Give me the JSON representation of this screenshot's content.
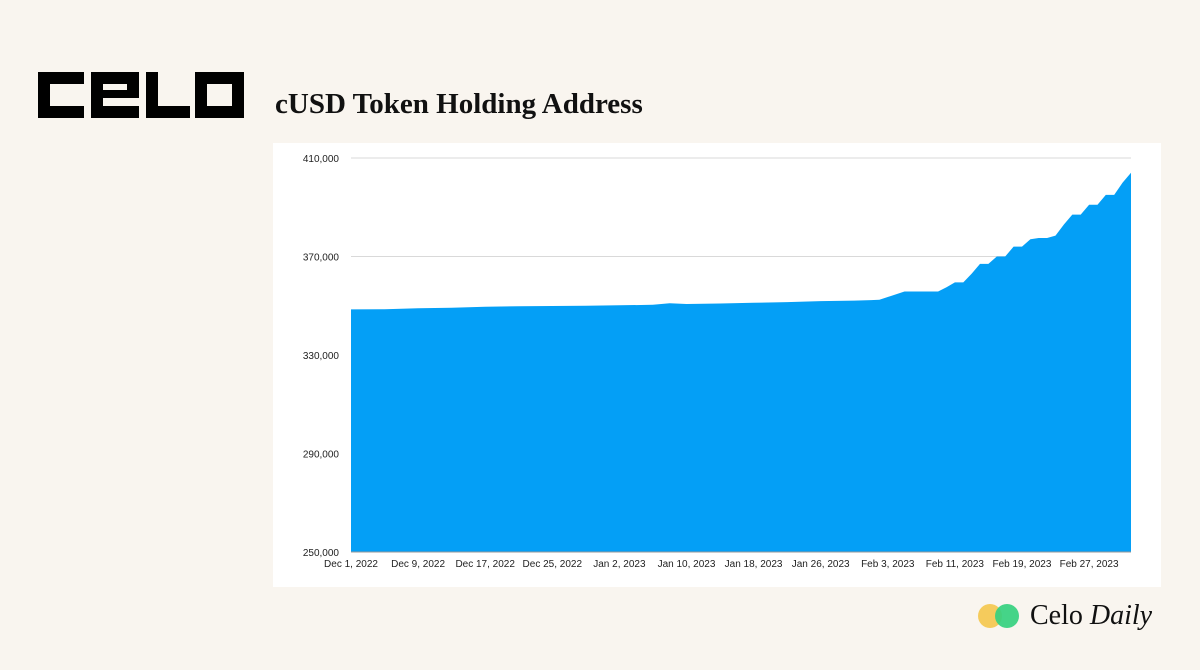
{
  "logo": {
    "text": "CELO"
  },
  "title": "cUSD Token Holding Address",
  "brand": {
    "name": "Celo",
    "suffix": "Daily",
    "colors": {
      "yellow": "#f5cb5c",
      "green": "#35d07f"
    }
  },
  "chart_data": {
    "type": "area",
    "title": "cUSD Token Holding Address",
    "xlabel": "",
    "ylabel": "",
    "ylim": [
      250000,
      410000
    ],
    "yticks": [
      250000,
      290000,
      330000,
      370000,
      410000
    ],
    "ytick_labels": [
      "250,000",
      "290,000",
      "330,000",
      "370,000",
      "410,000"
    ],
    "xtick_labels": [
      "Dec 1, 2022",
      "Dec 9, 2022",
      "Dec 17, 2022",
      "Dec 25, 2022",
      "Jan 2, 2023",
      "Jan 10, 2023",
      "Jan 18, 2023",
      "Jan 26, 2023",
      "Feb 3, 2023",
      "Feb 11, 2023",
      "Feb 19, 2023",
      "Feb 27, 2023"
    ],
    "grid": true,
    "fill_color": "#049ff6",
    "series": [
      {
        "x": [
          "Dec 1, 2022",
          "Dec 5, 2022",
          "Dec 9, 2022",
          "Dec 13, 2022",
          "Dec 17, 2022",
          "Dec 21, 2022",
          "Dec 25, 2022",
          "Dec 29, 2022",
          "Jan 2, 2023",
          "Jan 6, 2023",
          "Jan 8, 2023",
          "Jan 10, 2023",
          "Jan 14, 2023",
          "Jan 18, 2023",
          "Jan 22, 2023",
          "Jan 26, 2023",
          "Jan 30, 2023",
          "Feb 1, 2023",
          "Feb 2, 2023",
          "Feb 5, 2023",
          "Feb 7, 2023",
          "Feb 9, 2023",
          "Feb 10, 2023",
          "Feb 11, 2023",
          "Feb 12, 2023",
          "Feb 13, 2023",
          "Feb 14, 2023",
          "Feb 15, 2023",
          "Feb 16, 2023",
          "Feb 17, 2023",
          "Feb 18, 2023",
          "Feb 19, 2023",
          "Feb 20, 2023",
          "Feb 21, 2023",
          "Feb 22, 2023",
          "Feb 23, 2023",
          "Feb 24, 2023",
          "Feb 25, 2023",
          "Feb 26, 2023",
          "Feb 27, 2023",
          "Feb 28, 2023",
          "Mar 1, 2023",
          "Mar 2, 2023",
          "Mar 3, 2023",
          "Mar 4, 2023"
        ],
        "values": [
          348500,
          348600,
          349000,
          349200,
          349600,
          349800,
          349900,
          350000,
          350200,
          350400,
          351000,
          350700,
          350900,
          351200,
          351500,
          351900,
          352100,
          352300,
          352400,
          355800,
          355800,
          355800,
          357500,
          359500,
          359500,
          363000,
          367000,
          367000,
          370000,
          370000,
          374000,
          374000,
          377000,
          377500,
          377500,
          378500,
          383000,
          387000,
          387000,
          391000,
          391000,
          395000,
          395000,
          400000,
          404000
        ]
      }
    ]
  }
}
